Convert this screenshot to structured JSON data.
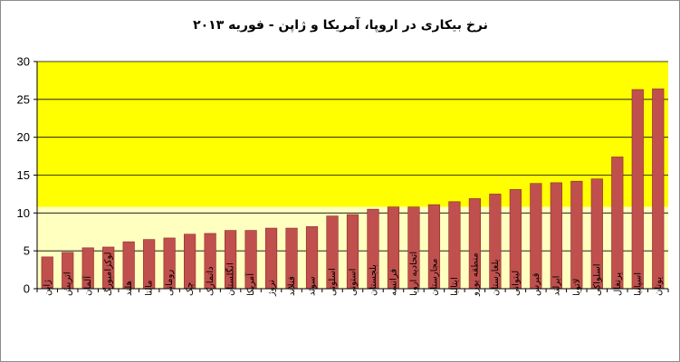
{
  "chart_data": {
    "type": "bar",
    "title": "نرخ بیکاری در اروپا، آمریکا و ژاپن - فوریه ۲۰۱۳",
    "xlabel": "",
    "ylabel": "",
    "ylim": [
      0,
      30
    ],
    "yticks": [
      0,
      5,
      10,
      15,
      20,
      25,
      30
    ],
    "grid": true,
    "legend": "none",
    "categories": [
      "ژاپن",
      "اتریش",
      "آلمان",
      "لوکزامبورگ",
      "هلند",
      "مالتا",
      "رومانی",
      "چک",
      "دانمارک",
      "انگلستان",
      "آمریکا",
      "نروژ",
      "فنلاند",
      "سوئد",
      "اسلونی",
      "استونی",
      "بلجستان",
      "فرانسه",
      "اتحادیه اروپا",
      "مجارستان",
      "ایتالیا",
      "منطقه یورو",
      "بلغارستان",
      "لیتوانی",
      "قبرس",
      "ایرلند",
      "لاتویا",
      "اسلواکی",
      "پرتغال",
      "اسپانیا",
      "یونان"
    ],
    "values": [
      4.2,
      4.8,
      5.4,
      5.5,
      6.2,
      6.5,
      6.7,
      7.2,
      7.3,
      7.7,
      7.7,
      8.0,
      8.0,
      8.2,
      9.6,
      9.8,
      10.5,
      10.8,
      10.8,
      11.1,
      11.5,
      11.9,
      12.5,
      13.1,
      13.9,
      14.0,
      14.2,
      14.5,
      17.4,
      26.3,
      26.4
    ],
    "colors": {
      "plot_top": "#ffff00",
      "plot_bottom": "#ffffc0",
      "bar": "#c0504d",
      "bar_edge": "#8c2c2a",
      "grid": "#000000"
    }
  }
}
